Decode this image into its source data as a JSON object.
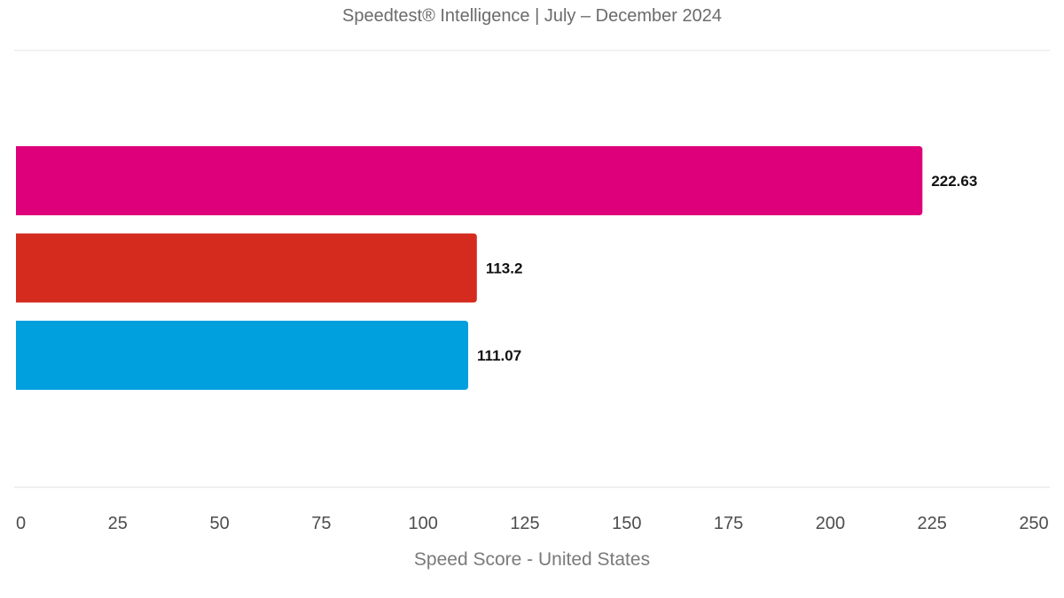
{
  "chart_data": {
    "type": "bar",
    "orientation": "horizontal",
    "subtitle": "Speedtest® Intelligence | July – December 2024",
    "xlabel": "Speed Score - United States",
    "ylabel": "",
    "xlim": [
      0,
      250
    ],
    "x_ticks": [
      0,
      25,
      50,
      75,
      100,
      125,
      150,
      175,
      200,
      225,
      250
    ],
    "categories": [
      "",
      "",
      ""
    ],
    "values": [
      222.63,
      113.2,
      111.07
    ],
    "value_labels": [
      "222.63",
      "113.2",
      "111.07"
    ],
    "colors": [
      "#DE007B",
      "#D52B1E",
      "#00A0DF"
    ],
    "grid": false,
    "legend": "none"
  }
}
